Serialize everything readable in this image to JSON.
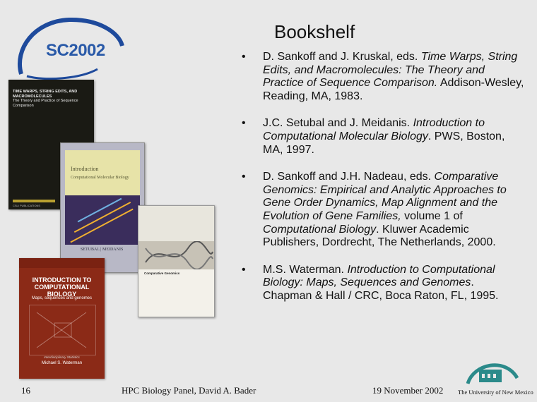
{
  "logo": {
    "text": "SC2002"
  },
  "title": "Bookshelf",
  "references": [
    {
      "prefix": "D. Sankoff and J. Kruskal, eds. ",
      "italic": "Time Warps, String Edits, and Macromolecules: The Theory and Practice of Sequence Comparison.",
      "suffix": " Addison-Wesley, Reading, MA, 1983."
    },
    {
      "prefix": "J.C. Setubal and J. Meidanis.  ",
      "italic": "Introduction to Computational Molecular Biology",
      "suffix": ". PWS, Boston, MA, 1997."
    },
    {
      "prefix": "D. Sankoff and J.H. Nadeau, eds. ",
      "italic": "Comparative Genomics: Empirical and Analytic Approaches to Gene Order Dynamics, Map Alignment and the Evolution of Gene Families,",
      "mid": " volume 1 of ",
      "italic2": "Computational Biology",
      "suffix": ". Kluwer Academic Publishers, Dordrecht, The Netherlands, 2000."
    },
    {
      "prefix": "M.S. Waterman. ",
      "italic": "Introduction to Computational Biology: Maps, Sequences and  Genomes",
      "suffix": ". Chapman & Hall / CRC, Boca Raton, FL, 1995."
    }
  ],
  "books": {
    "b1": {
      "title": "TIME WARPS, STRING EDITS, AND MACROMOLECULES",
      "subtitle": "The Theory and Practice of Sequence Comparison",
      "series": "CSLI PUBLICATIONS"
    },
    "b2": {
      "title1": "Introduction",
      "title2": "Computational Molecular Biology",
      "authors": "SETUBAL | MEIDANIS"
    },
    "b3": {
      "title": "Comparative Genomics"
    },
    "b4": {
      "title": "INTRODUCTION TO COMPUTATIONAL BIOLOGY",
      "subtitle": "Maps, sequences and genomes",
      "series": "Interdisciplinary Statistics",
      "author": "Michael S. Waterman"
    }
  },
  "footer": {
    "page": "16",
    "center": "HPC Biology Panel,  David A. Bader",
    "date": "19 November 2002",
    "university": "The University of New Mexico"
  }
}
